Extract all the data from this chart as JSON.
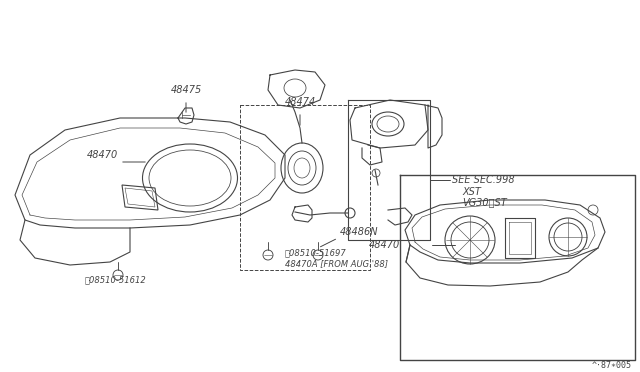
{
  "bg_color": "#ffffff",
  "line_color": "#444444",
  "text_color": "#444444",
  "fig_ref": "^·87∗005",
  "labels": {
    "48470_main": "48470",
    "48475": "48475",
    "48474": "48474",
    "48486N": "48486N",
    "see_sec": "SEE SEC.998",
    "xst": "XST",
    "vg30st": "VG30〉ST",
    "48470_inset": "48470",
    "screw1": "Ⓢ08510-51697",
    "screw1b": "48470A [FROM AUG.'88]",
    "screw2": "Ⓢ08510-51612"
  },
  "fontsize_label": 7,
  "fontsize_small": 6,
  "fontsize_ref": 6
}
